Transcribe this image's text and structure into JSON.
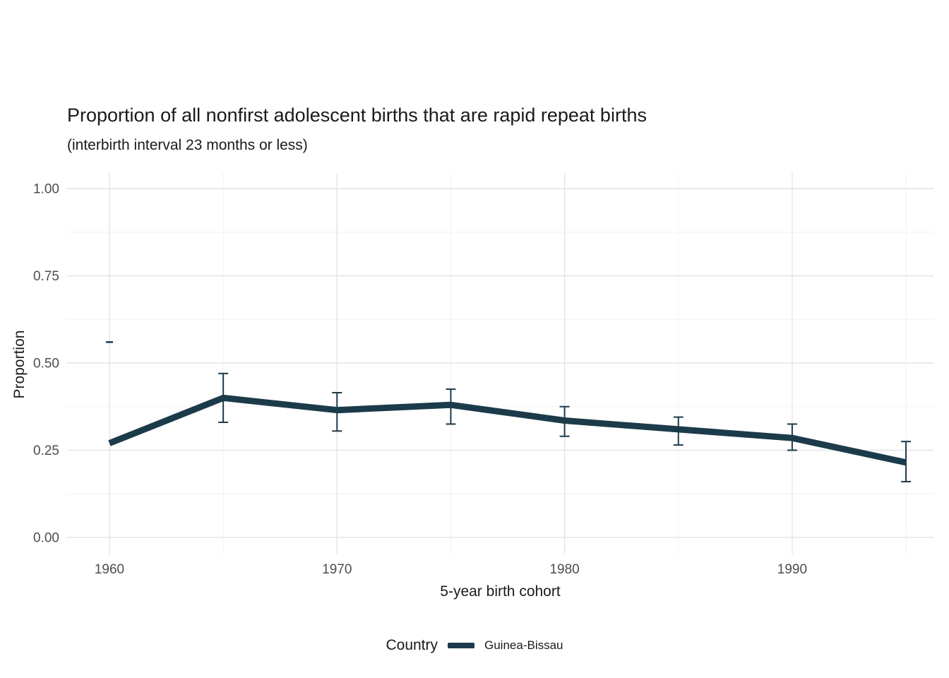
{
  "chart_data": {
    "type": "line",
    "title": "Proportion of all nonfirst adolescent births that are rapid repeat births",
    "subtitle": "(interbirth interval 23 months or less)",
    "xlabel": "5-year birth cohort",
    "ylabel": "Proportion",
    "xlim": [
      1958.1,
      1996.4
    ],
    "ylim": [
      -0.05,
      1.045
    ],
    "grid": true,
    "x_ticks": [
      {
        "v": 1960,
        "label": "1960"
      },
      {
        "v": 1970,
        "label": "1970"
      },
      {
        "v": 1980,
        "label": "1980"
      },
      {
        "v": 1990,
        "label": "1990"
      }
    ],
    "x_minor_ticks": [
      1965,
      1975,
      1985,
      1995
    ],
    "y_ticks": [
      {
        "v": 0.0,
        "label": "0.00"
      },
      {
        "v": 0.25,
        "label": "0.25"
      },
      {
        "v": 0.5,
        "label": "0.50"
      },
      {
        "v": 0.75,
        "label": "0.75"
      },
      {
        "v": 1.0,
        "label": "1.00"
      }
    ],
    "y_minor_ticks": [
      0.125,
      0.375,
      0.625,
      0.875
    ],
    "legend": {
      "title": "Country",
      "position": "bottom",
      "entries": [
        {
          "label": "Guinea-Bissau",
          "color": "#1c3b4a"
        }
      ]
    },
    "series": [
      {
        "name": "Guinea-Bissau",
        "color": "#1c3b4a",
        "points": [
          {
            "x": 1960,
            "y": 0.27,
            "ci_low": null,
            "ci_high": null
          },
          {
            "x": 1965,
            "y": 0.4,
            "ci_low": 0.33,
            "ci_high": 0.47
          },
          {
            "x": 1970,
            "y": 0.365,
            "ci_low": 0.305,
            "ci_high": 0.415
          },
          {
            "x": 1975,
            "y": 0.38,
            "ci_low": 0.325,
            "ci_high": 0.425
          },
          {
            "x": 1980,
            "y": 0.335,
            "ci_low": 0.29,
            "ci_high": 0.375
          },
          {
            "x": 1985,
            "y": 0.31,
            "ci_low": 0.265,
            "ci_high": 0.345
          },
          {
            "x": 1990,
            "y": 0.285,
            "ci_low": 0.25,
            "ci_high": 0.325
          },
          {
            "x": 1995,
            "y": 0.215,
            "ci_low": 0.16,
            "ci_high": 0.275
          }
        ]
      }
    ],
    "annotations": [
      {
        "type": "cap-dash",
        "x": 1960,
        "y": 0.56
      }
    ],
    "colors": {
      "background": "#ffffff",
      "grid_major": "#e4e4e4",
      "grid_minor": "#f1f1f1",
      "tick_label": "#4d4d4d",
      "text": "#1a1a1a"
    }
  }
}
